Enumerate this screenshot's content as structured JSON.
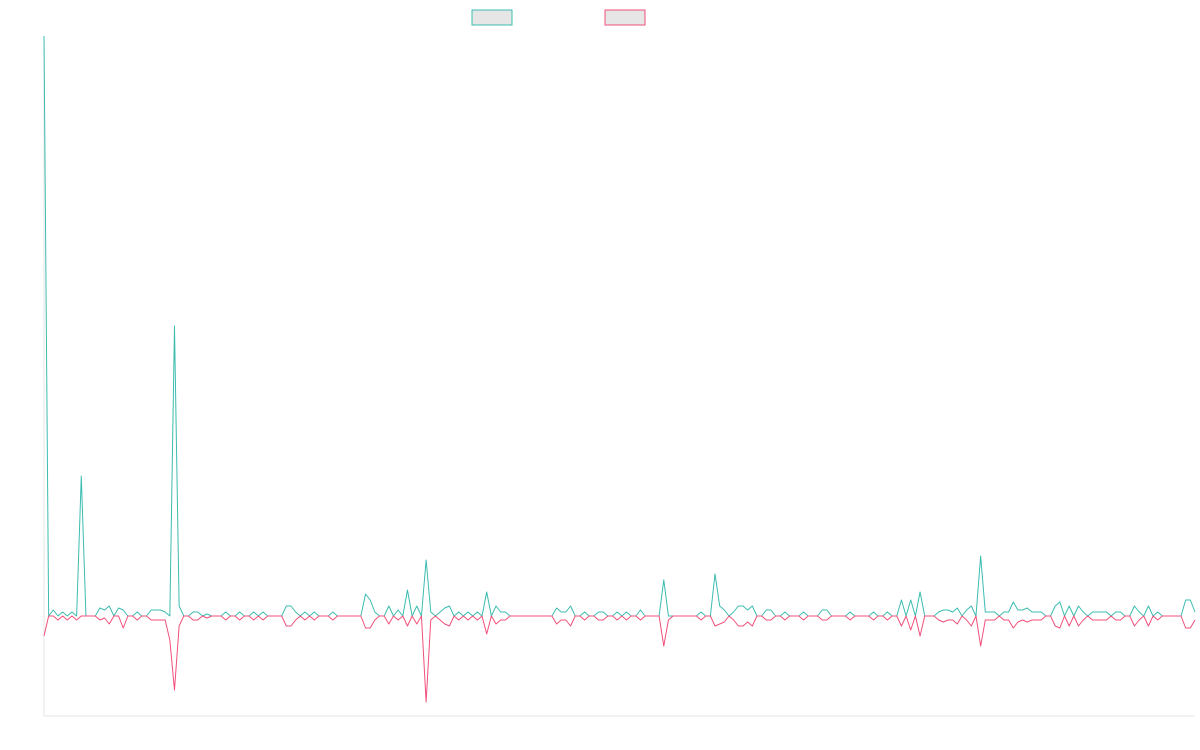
{
  "chart_data": {
    "type": "line",
    "title": "",
    "xlabel": "",
    "ylabel": "",
    "grid": false,
    "legend": "top-center",
    "ylim": [
      -0.5,
      2.9
    ],
    "series": [
      {
        "color": "#3cbcb0",
        "fill": "#e6e6e6",
        "values": [
          2.9,
          0,
          0.03,
          0,
          0.02,
          0,
          0.02,
          0,
          0.7,
          0,
          0,
          0,
          0.04,
          0.03,
          0.05,
          0,
          0.04,
          0.03,
          0,
          0,
          0.02,
          0,
          0,
          0.03,
          0.03,
          0.03,
          0.02,
          0,
          1.45,
          0.05,
          0,
          0,
          0.02,
          0.02,
          0,
          0.01,
          0,
          0,
          0,
          0.02,
          0,
          0,
          0.02,
          0,
          0,
          0.02,
          0,
          0.02,
          0,
          0,
          0,
          0,
          0.05,
          0.05,
          0.02,
          0,
          0.02,
          0,
          0.02,
          0,
          0,
          0,
          0.02,
          0,
          0,
          0,
          0,
          0,
          0,
          0.11,
          0.08,
          0.02,
          0,
          0,
          0.05,
          0,
          0.03,
          0,
          0.13,
          0,
          0.05,
          0,
          0.28,
          0.02,
          0,
          0.02,
          0.04,
          0.05,
          0,
          0.02,
          0,
          0.02,
          0,
          0.02,
          0,
          0.12,
          0,
          0.05,
          0.02,
          0.02,
          0,
          0,
          0,
          0,
          0,
          0,
          0,
          0,
          0,
          0,
          0.04,
          0.02,
          0.02,
          0.05,
          0,
          0,
          0.02,
          0,
          0,
          0.02,
          0.02,
          0,
          0,
          0.02,
          0,
          0.02,
          0,
          0,
          0.03,
          0,
          0,
          0,
          0,
          0.18,
          0,
          0,
          0,
          0,
          0,
          0,
          0,
          0.02,
          0,
          0,
          0.21,
          0.05,
          0.03,
          0,
          0.02,
          0.05,
          0.05,
          0.03,
          0.05,
          0,
          0,
          0.03,
          0.03,
          0,
          0,
          0.02,
          0,
          0,
          0,
          0.02,
          0,
          0,
          0,
          0.03,
          0.03,
          0,
          0,
          0,
          0,
          0.02,
          0,
          0,
          0,
          0,
          0.02,
          0,
          0,
          0.02,
          0,
          0,
          0.08,
          0,
          0.08,
          0,
          0.12,
          0,
          0,
          0,
          0.02,
          0.03,
          0.03,
          0.02,
          0.04,
          0,
          0.03,
          0.05,
          0,
          0.3,
          0.02,
          0.02,
          0.02,
          0,
          0.02,
          0.02,
          0.07,
          0.03,
          0.03,
          0.04,
          0.02,
          0.02,
          0.02,
          0,
          0,
          0.05,
          0.07,
          0,
          0.05,
          0,
          0.05,
          0.02,
          0,
          0.02,
          0.02,
          0.02,
          0.02,
          0,
          0.02,
          0.02,
          0,
          0,
          0.05,
          0.02,
          0,
          0.05,
          0,
          0.02,
          0,
          0,
          0,
          0,
          0,
          0.08,
          0.08,
          0.02
        ]
      },
      {
        "color": "#f0507a",
        "fill": "#e6e6e6",
        "values": [
          -0.1,
          0,
          0,
          -0.02,
          0,
          -0.02,
          0,
          -0.02,
          0,
          0,
          0,
          0,
          -0.02,
          -0.01,
          -0.04,
          0,
          0,
          -0.06,
          0,
          0,
          -0.02,
          0,
          0,
          -0.02,
          -0.02,
          -0.02,
          -0.02,
          -0.12,
          -0.37,
          -0.05,
          0,
          0,
          -0.02,
          -0.02,
          0,
          -0.01,
          0,
          0,
          0,
          -0.02,
          0,
          0,
          -0.02,
          0,
          0,
          -0.02,
          0,
          -0.02,
          0,
          0,
          0,
          0,
          -0.05,
          -0.05,
          -0.02,
          0,
          -0.02,
          0,
          -0.02,
          0,
          0,
          0,
          -0.02,
          0,
          0,
          0,
          0,
          0,
          0,
          -0.06,
          -0.06,
          -0.02,
          0,
          0,
          -0.04,
          0,
          -0.02,
          0,
          -0.05,
          0,
          -0.04,
          0,
          -0.43,
          -0.02,
          0,
          -0.02,
          -0.04,
          -0.05,
          0,
          -0.02,
          0,
          -0.02,
          0,
          -0.02,
          0,
          -0.09,
          0,
          -0.04,
          -0.02,
          -0.02,
          0,
          0,
          0,
          0,
          0,
          0,
          0,
          0,
          0,
          0,
          -0.04,
          -0.02,
          -0.02,
          -0.05,
          0,
          0,
          -0.02,
          0,
          0,
          -0.02,
          -0.02,
          0,
          0,
          -0.02,
          0,
          -0.02,
          0,
          0,
          -0.02,
          0,
          0,
          0,
          0,
          -0.15,
          -0.02,
          0,
          0,
          0,
          0,
          0,
          0,
          -0.02,
          0,
          0,
          -0.05,
          -0.04,
          -0.03,
          0,
          -0.02,
          -0.05,
          -0.05,
          -0.03,
          -0.05,
          0,
          0,
          -0.02,
          -0.02,
          0,
          0,
          -0.02,
          0,
          0,
          0,
          -0.02,
          0,
          0,
          0,
          -0.02,
          -0.02,
          0,
          0,
          0,
          0,
          -0.02,
          0,
          0,
          0,
          0,
          -0.02,
          0,
          0,
          -0.02,
          0,
          0,
          -0.05,
          0,
          -0.07,
          0,
          -0.1,
          0,
          0,
          0,
          -0.02,
          -0.03,
          -0.02,
          -0.02,
          -0.04,
          0,
          -0.02,
          -0.05,
          0,
          -0.15,
          -0.02,
          -0.02,
          -0.02,
          0,
          -0.02,
          -0.02,
          -0.06,
          -0.03,
          -0.02,
          -0.03,
          -0.02,
          -0.02,
          -0.02,
          0,
          0,
          -0.05,
          -0.06,
          0,
          -0.05,
          0,
          -0.05,
          -0.02,
          0,
          -0.02,
          -0.02,
          -0.02,
          -0.02,
          0,
          -0.02,
          -0.02,
          0,
          0,
          -0.05,
          -0.02,
          0,
          -0.05,
          0,
          -0.02,
          0,
          0,
          0,
          0,
          0,
          -0.06,
          -0.06,
          -0.02
        ]
      }
    ]
  }
}
